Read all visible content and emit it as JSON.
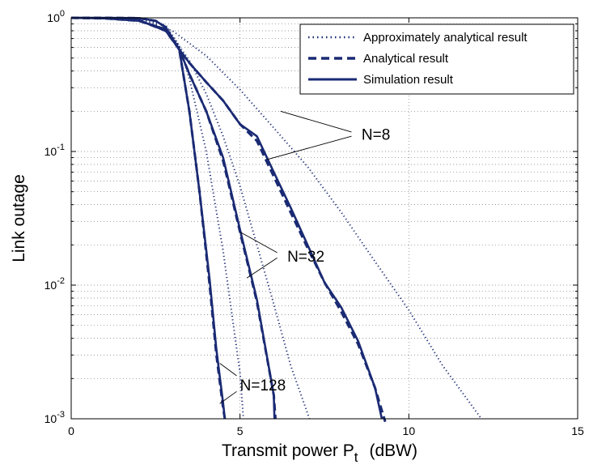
{
  "chart_data": {
    "type": "line",
    "xlabel": "Transmit power  P",
    "xlabel_sub": "t",
    "xlabel_unit": "(dBW)",
    "ylabel": "Link outage",
    "xlim": [
      0,
      15
    ],
    "ylim": [
      0.001,
      1
    ],
    "yscale": "log",
    "grid": true,
    "legend_position": "top-right",
    "x_ticks": [
      "0",
      "5",
      "10",
      "15"
    ],
    "y_ticks": [
      {
        "base": "10",
        "exp": "0",
        "value": 1
      },
      {
        "base": "10",
        "exp": "-1",
        "value": 0.1
      },
      {
        "base": "10",
        "exp": "-2",
        "value": 0.01
      },
      {
        "base": "10",
        "exp": "-3",
        "value": 0.001
      }
    ],
    "legend": [
      {
        "label": "Approximately analytical result",
        "style": "dotted"
      },
      {
        "label": "Analytical result",
        "style": "dashed"
      },
      {
        "label": "Simulation result",
        "style": "solid"
      }
    ],
    "annotations": [
      {
        "text": "N=8",
        "x": 8.6,
        "y": 0.135,
        "lines": [
          [
            8.3,
            0.14,
            6.2,
            0.2
          ],
          [
            8.3,
            0.13,
            5.8,
            0.087
          ]
        ]
      },
      {
        "text": "N=32",
        "x": 6.4,
        "y": 0.0165,
        "lines": [
          [
            6.1,
            0.0175,
            5.0,
            0.025
          ],
          [
            6.1,
            0.016,
            5.2,
            0.0113
          ]
        ]
      },
      {
        "text": "N=128",
        "x": 5.0,
        "y": 0.0018,
        "lines": [
          [
            4.9,
            0.0021,
            4.4,
            0.0026
          ],
          [
            4.9,
            0.0016,
            4.4,
            0.0013
          ]
        ]
      }
    ],
    "series": [
      {
        "group": "N=8",
        "style": "dotted",
        "x": [
          0,
          1,
          2,
          3,
          4,
          5,
          6,
          7,
          8,
          9,
          10,
          11,
          12.15
        ],
        "y": [
          1.0,
          0.99,
          0.95,
          0.8,
          0.52,
          0.29,
          0.15,
          0.077,
          0.035,
          0.015,
          0.0065,
          0.0025,
          0.001
        ]
      },
      {
        "group": "N=8",
        "style": "dashed",
        "x": [
          0,
          1,
          2,
          2.8,
          3.2,
          3.5,
          4,
          4.5,
          5,
          5.5,
          6,
          6.5,
          7,
          7.5,
          8,
          8.5,
          9,
          9.3
        ],
        "y": [
          1.0,
          0.99,
          0.95,
          0.82,
          0.58,
          0.46,
          0.33,
          0.24,
          0.16,
          0.12,
          0.065,
          0.035,
          0.019,
          0.0105,
          0.0063,
          0.0036,
          0.0017,
          0.00095
        ]
      },
      {
        "group": "N=8",
        "style": "solid",
        "x": [
          0,
          1,
          2,
          2.8,
          3.2,
          3.5,
          4,
          4.5,
          5,
          5.5,
          6,
          6.5,
          7,
          7.5,
          8,
          8.5,
          9,
          9.2
        ],
        "y": [
          1.0,
          0.99,
          0.95,
          0.82,
          0.58,
          0.46,
          0.33,
          0.24,
          0.16,
          0.13,
          0.07,
          0.038,
          0.02,
          0.0105,
          0.0068,
          0.0038,
          0.0017,
          0.001
        ]
      },
      {
        "group": "N=32",
        "style": "dotted",
        "x": [
          0,
          1,
          2,
          2.5,
          3,
          3.5,
          4,
          4.5,
          5,
          5.5,
          6,
          6.5,
          7,
          7.05
        ],
        "y": [
          1.0,
          0.995,
          0.96,
          0.9,
          0.72,
          0.48,
          0.27,
          0.13,
          0.055,
          0.02,
          0.0072,
          0.0025,
          0.0011,
          0.001
        ]
      },
      {
        "group": "N=32",
        "style": "dashed",
        "x": [
          0,
          1,
          2,
          2.8,
          3.2,
          3.5,
          4,
          4.5,
          5,
          5.5,
          6,
          6.05
        ],
        "y": [
          1.0,
          0.995,
          0.96,
          0.8,
          0.58,
          0.38,
          0.2,
          0.085,
          0.025,
          0.0075,
          0.0015,
          0.001
        ]
      },
      {
        "group": "N=32",
        "style": "solid",
        "x": [
          0,
          1,
          2,
          2.8,
          3.2,
          3.5,
          4,
          4.5,
          5,
          5.5,
          6,
          6.02
        ],
        "y": [
          1.0,
          0.995,
          0.96,
          0.8,
          0.58,
          0.38,
          0.2,
          0.09,
          0.026,
          0.0078,
          0.0015,
          0.001
        ]
      },
      {
        "group": "N=128",
        "style": "dotted",
        "x": [
          0,
          1,
          2,
          2.8,
          3.2,
          3.5,
          4,
          4.5,
          5,
          5.1
        ],
        "y": [
          1.0,
          0.999,
          0.985,
          0.88,
          0.62,
          0.35,
          0.1,
          0.018,
          0.0022,
          0.001
        ]
      },
      {
        "group": "N=128",
        "style": "dashed",
        "x": [
          0,
          1,
          2,
          2.5,
          2.8,
          3.2,
          3.5,
          3.8,
          4.1,
          4.3,
          4.5,
          4.55
        ],
        "y": [
          1.0,
          1.0,
          0.995,
          0.95,
          0.85,
          0.58,
          0.2,
          0.05,
          0.01,
          0.003,
          0.0012,
          0.001
        ]
      },
      {
        "group": "N=128",
        "style": "solid",
        "x": [
          0,
          1,
          2,
          2.5,
          2.8,
          3.2,
          3.5,
          3.8,
          4.1,
          4.3,
          4.5,
          4.55
        ],
        "y": [
          1.0,
          1.0,
          0.995,
          0.95,
          0.85,
          0.58,
          0.2,
          0.05,
          0.011,
          0.0033,
          0.0013,
          0.001
        ]
      }
    ]
  }
}
